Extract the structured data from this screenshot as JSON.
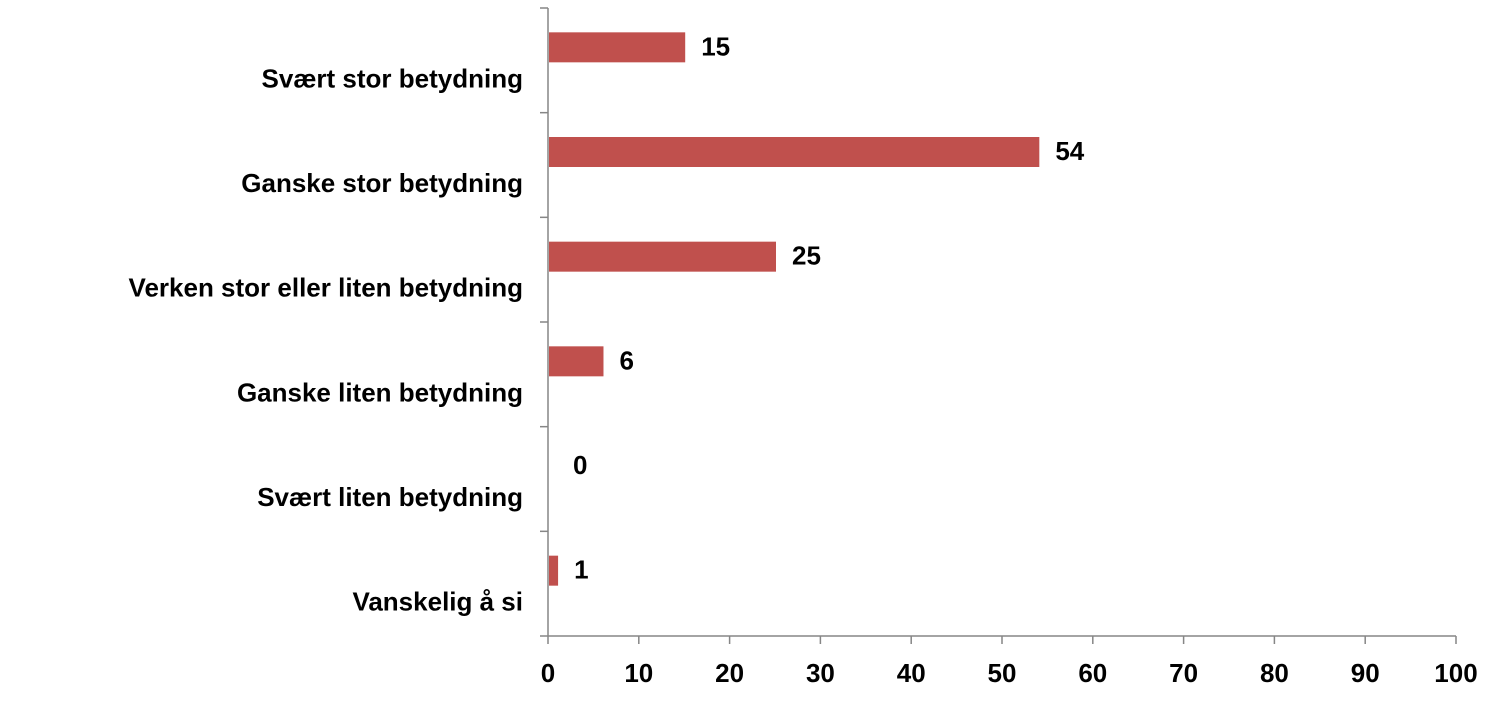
{
  "chart_data": {
    "type": "bar",
    "orientation": "horizontal",
    "categories": [
      "Svært stor betydning",
      "Ganske stor betydning",
      "Verken stor  eller liten betydning",
      "Ganske liten betydning",
      "Svært liten betydning",
      "Vanskelig å si"
    ],
    "values": [
      15,
      54,
      25,
      6,
      0,
      1
    ],
    "xlim": [
      0,
      100
    ],
    "xticks": [
      "0",
      "10",
      "20",
      "30",
      "40",
      "50",
      "60",
      "70",
      "80",
      "90",
      "100"
    ],
    "grid": false,
    "legend": "none",
    "bar_color": "#C0504D",
    "axis_color": "#868686"
  }
}
